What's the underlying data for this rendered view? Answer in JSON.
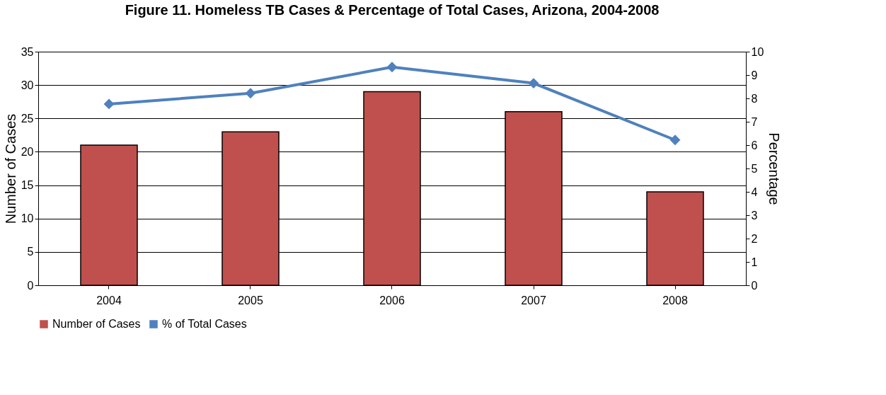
{
  "chart_data": {
    "type": "bar",
    "title": "Figure 11.  Homeless TB Cases & Percentage  of Total Cases, Arizona, 2004-2008",
    "categories": [
      "2004",
      "2005",
      "2006",
      "2007",
      "2008"
    ],
    "series": [
      {
        "name": "Number of Cases",
        "color": "#c0504d",
        "values": [
          21,
          23,
          29,
          26,
          14
        ]
      },
      {
        "name": "% of Total Cases",
        "type": "line",
        "axis": "y2",
        "color": "#4f81bd",
        "marker": "diamond",
        "values": [
          7.76,
          8.22,
          9.34,
          8.65,
          6.22
        ]
      }
    ],
    "ylabel": "Number of Cases",
    "y2label": "Percentage",
    "ylim": [
      0,
      35
    ],
    "yticks": [
      0,
      5,
      10,
      15,
      20,
      25,
      30,
      35
    ],
    "y2lim": [
      0,
      10
    ],
    "y2ticks": [
      0,
      1,
      2,
      3,
      4,
      5,
      6,
      7,
      8,
      9,
      10
    ],
    "grid": "y",
    "legend": "bottom"
  }
}
